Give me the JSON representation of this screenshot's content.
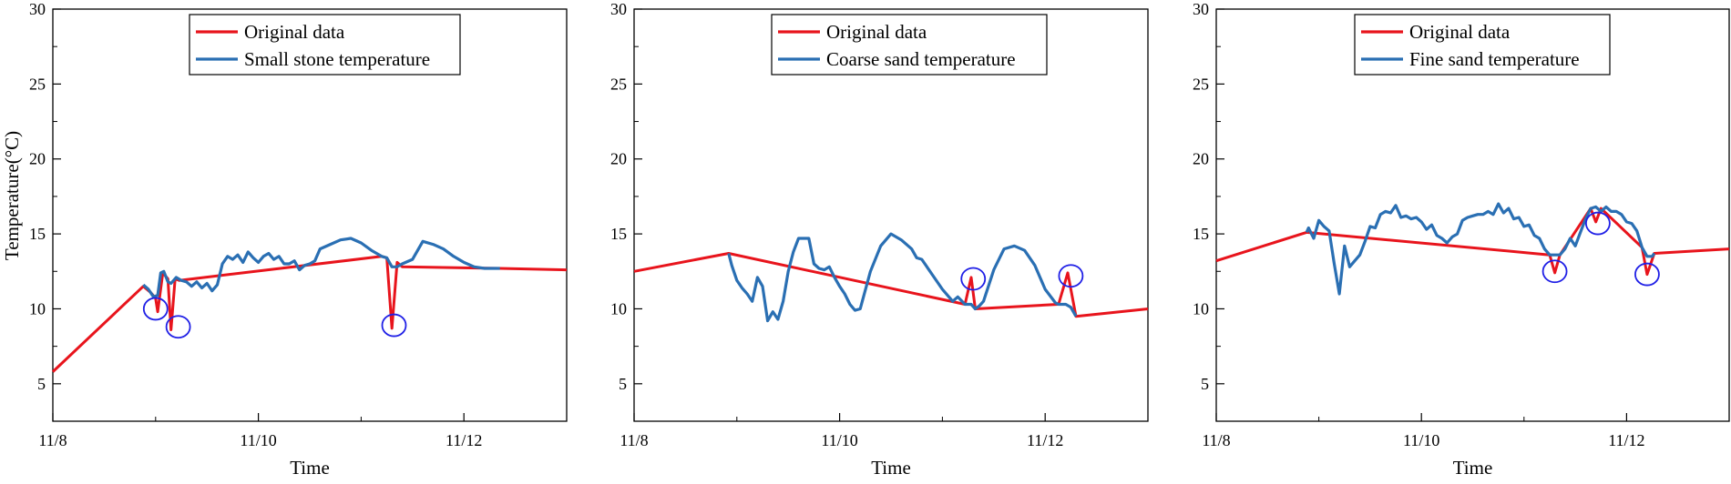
{
  "figure": {
    "ylabel": "Temperature(°C)",
    "colors": {
      "original": "#e8141c",
      "filtered": "#2a6fb3",
      "marker": "#1f1fe6",
      "axis": "#000000"
    }
  },
  "chart_data": [
    {
      "type": "line",
      "title": "",
      "xlabel": "Time",
      "ylabel": "Temperature(°C)",
      "xlim": [
        0,
        5
      ],
      "ylim": [
        2.5,
        30
      ],
      "x_ticks": [
        0,
        2,
        4
      ],
      "x_tick_labels": [
        "11/8",
        "11/10",
        "11/12"
      ],
      "y_ticks": [
        5,
        10,
        15,
        20,
        25,
        30
      ],
      "y_tick_labels": [
        "5",
        "10",
        "15",
        "20",
        "25",
        "30"
      ],
      "legend_position": "top-center",
      "series": [
        {
          "name": "Original data",
          "role": "original",
          "x": [
            0,
            0.88,
            0.95,
            1.0,
            1.02,
            1.07,
            1.12,
            1.15,
            1.19,
            1.23,
            3.2,
            3.25,
            3.3,
            3.35,
            3.4,
            4.35,
            5.0
          ],
          "values": [
            5.8,
            11.5,
            11.1,
            10.7,
            9.8,
            12.4,
            12.0,
            8.6,
            12.0,
            11.9,
            13.5,
            13.4,
            8.7,
            13.1,
            12.8,
            12.7,
            12.6
          ]
        },
        {
          "name": "Small stone temperature",
          "role": "filtered",
          "x": [
            0.88,
            0.93,
            0.98,
            1.02,
            1.05,
            1.08,
            1.12,
            1.15,
            1.2,
            1.25,
            1.3,
            1.35,
            1.4,
            1.45,
            1.5,
            1.55,
            1.6,
            1.65,
            1.7,
            1.75,
            1.8,
            1.85,
            1.9,
            1.95,
            2.0,
            2.05,
            2.1,
            2.15,
            2.2,
            2.25,
            2.3,
            2.35,
            2.4,
            2.45,
            2.5,
            2.55,
            2.6,
            2.7,
            2.8,
            2.9,
            3.0,
            3.1,
            3.2,
            3.25,
            3.3,
            3.35,
            3.4,
            3.5,
            3.6,
            3.7,
            3.8,
            3.9,
            4.0,
            4.1,
            4.2,
            4.3,
            4.35
          ],
          "values": [
            11.6,
            11.3,
            10.8,
            10.9,
            12.4,
            12.5,
            11.8,
            11.7,
            12.1,
            11.9,
            11.8,
            11.5,
            11.8,
            11.4,
            11.7,
            11.2,
            11.6,
            13.0,
            13.5,
            13.3,
            13.6,
            13.1,
            13.8,
            13.4,
            13.1,
            13.5,
            13.7,
            13.3,
            13.5,
            13.0,
            13.0,
            13.2,
            12.6,
            12.9,
            13.0,
            13.2,
            14.0,
            14.3,
            14.6,
            14.7,
            14.4,
            13.9,
            13.5,
            13.4,
            12.8,
            12.8,
            13.0,
            13.3,
            14.5,
            14.3,
            14.0,
            13.5,
            13.1,
            12.8,
            12.7,
            12.7,
            12.7
          ]
        }
      ],
      "annotations": [
        {
          "type": "circle",
          "x": 1.0,
          "y": 10.0
        },
        {
          "type": "circle",
          "x": 1.22,
          "y": 8.8
        },
        {
          "type": "circle",
          "x": 3.32,
          "y": 8.9
        }
      ]
    },
    {
      "type": "line",
      "title": "",
      "xlabel": "Time",
      "ylabel": "",
      "xlim": [
        0,
        5
      ],
      "ylim": [
        2.5,
        30
      ],
      "x_ticks": [
        0,
        2,
        4
      ],
      "x_tick_labels": [
        "11/8",
        "11/10",
        "11/12"
      ],
      "y_ticks": [
        5,
        10,
        15,
        20,
        25,
        30
      ],
      "y_tick_labels": [
        "5",
        "10",
        "15",
        "20",
        "25",
        "30"
      ],
      "legend_position": "top-center",
      "series": [
        {
          "name": "Original data",
          "role": "original",
          "x": [
            0,
            0.92,
            3.22,
            3.28,
            3.32,
            4.13,
            4.22,
            4.3,
            5.0
          ],
          "values": [
            12.5,
            13.7,
            10.3,
            12.1,
            10.0,
            10.3,
            12.4,
            9.5,
            10.0
          ]
        },
        {
          "name": "Coarse sand temperature",
          "role": "filtered",
          "x": [
            0.92,
            0.95,
            1.0,
            1.05,
            1.1,
            1.15,
            1.2,
            1.25,
            1.3,
            1.35,
            1.4,
            1.45,
            1.5,
            1.55,
            1.6,
            1.65,
            1.7,
            1.75,
            1.8,
            1.85,
            1.9,
            1.95,
            2.0,
            2.05,
            2.1,
            2.15,
            2.2,
            2.3,
            2.4,
            2.5,
            2.6,
            2.7,
            2.75,
            2.8,
            2.9,
            3.0,
            3.1,
            3.15,
            3.22,
            3.28,
            3.32,
            3.36,
            3.4,
            3.5,
            3.6,
            3.7,
            3.8,
            3.9,
            4.0,
            4.1,
            4.13,
            4.2,
            4.25,
            4.3
          ],
          "values": [
            13.7,
            12.9,
            11.9,
            11.4,
            11.0,
            10.5,
            12.1,
            11.5,
            9.2,
            9.8,
            9.3,
            10.5,
            12.5,
            13.8,
            14.7,
            14.7,
            14.7,
            13.0,
            12.7,
            12.6,
            12.8,
            12.1,
            11.5,
            11.0,
            10.3,
            9.9,
            10.0,
            12.5,
            14.2,
            15.0,
            14.6,
            14.0,
            13.4,
            13.3,
            12.3,
            11.3,
            10.5,
            10.8,
            10.3,
            10.3,
            10.0,
            10.2,
            10.5,
            12.6,
            14.0,
            14.2,
            13.9,
            12.9,
            11.3,
            10.4,
            10.3,
            10.3,
            10.1,
            9.5
          ]
        }
      ],
      "annotations": [
        {
          "type": "circle",
          "x": 3.3,
          "y": 12.0
        },
        {
          "type": "circle",
          "x": 4.25,
          "y": 12.2
        }
      ]
    },
    {
      "type": "line",
      "title": "",
      "xlabel": "Time",
      "ylabel": "",
      "xlim": [
        0,
        5
      ],
      "ylim": [
        2.5,
        30
      ],
      "x_ticks": [
        0,
        2,
        4
      ],
      "x_tick_labels": [
        "11/8",
        "11/10",
        "11/12"
      ],
      "y_ticks": [
        5,
        10,
        15,
        20,
        25,
        30
      ],
      "y_tick_labels": [
        "5",
        "10",
        "15",
        "20",
        "25",
        "30"
      ],
      "legend_position": "top-center",
      "series": [
        {
          "name": "Original data",
          "role": "original",
          "x": [
            0,
            0.88,
            3.25,
            3.3,
            3.35,
            3.65,
            3.7,
            3.75,
            4.15,
            4.2,
            4.27,
            5.0
          ],
          "values": [
            13.2,
            15.1,
            13.6,
            12.4,
            13.6,
            16.7,
            15.8,
            16.7,
            14.1,
            12.3,
            13.7,
            14.0
          ]
        },
        {
          "name": "Fine sand temperature",
          "role": "filtered",
          "x": [
            0.88,
            0.9,
            0.95,
            1.0,
            1.05,
            1.1,
            1.15,
            1.2,
            1.25,
            1.3,
            1.35,
            1.4,
            1.45,
            1.5,
            1.55,
            1.6,
            1.65,
            1.7,
            1.75,
            1.8,
            1.85,
            1.9,
            1.95,
            2.0,
            2.05,
            2.1,
            2.15,
            2.2,
            2.25,
            2.3,
            2.35,
            2.4,
            2.45,
            2.5,
            2.55,
            2.6,
            2.65,
            2.7,
            2.75,
            2.8,
            2.85,
            2.9,
            2.95,
            3.0,
            3.05,
            3.1,
            3.15,
            3.2,
            3.25,
            3.3,
            3.35,
            3.4,
            3.45,
            3.5,
            3.55,
            3.6,
            3.65,
            3.7,
            3.75,
            3.8,
            3.85,
            3.9,
            3.95,
            4.0,
            4.05,
            4.1,
            4.15,
            4.2,
            4.25,
            4.27
          ],
          "values": [
            15.1,
            15.4,
            14.7,
            15.9,
            15.5,
            15.2,
            13.0,
            11.0,
            14.2,
            12.8,
            13.2,
            13.6,
            14.5,
            15.5,
            15.4,
            16.3,
            16.5,
            16.4,
            16.9,
            16.1,
            16.2,
            16.0,
            16.1,
            15.8,
            15.3,
            15.6,
            14.9,
            14.7,
            14.4,
            14.8,
            15.0,
            15.9,
            16.1,
            16.2,
            16.3,
            16.3,
            16.5,
            16.3,
            17.0,
            16.4,
            16.7,
            16.0,
            16.1,
            15.5,
            15.6,
            14.9,
            14.7,
            14.0,
            13.6,
            13.6,
            13.6,
            14.0,
            14.7,
            14.2,
            15.1,
            16.0,
            16.7,
            16.8,
            16.5,
            16.8,
            16.5,
            16.5,
            16.3,
            15.8,
            15.7,
            15.2,
            14.1,
            13.5,
            13.5,
            13.7
          ]
        }
      ],
      "annotations": [
        {
          "type": "circle",
          "x": 3.3,
          "y": 12.5
        },
        {
          "type": "circle",
          "x": 3.72,
          "y": 15.7
        },
        {
          "type": "circle",
          "x": 4.2,
          "y": 12.3
        }
      ]
    }
  ]
}
